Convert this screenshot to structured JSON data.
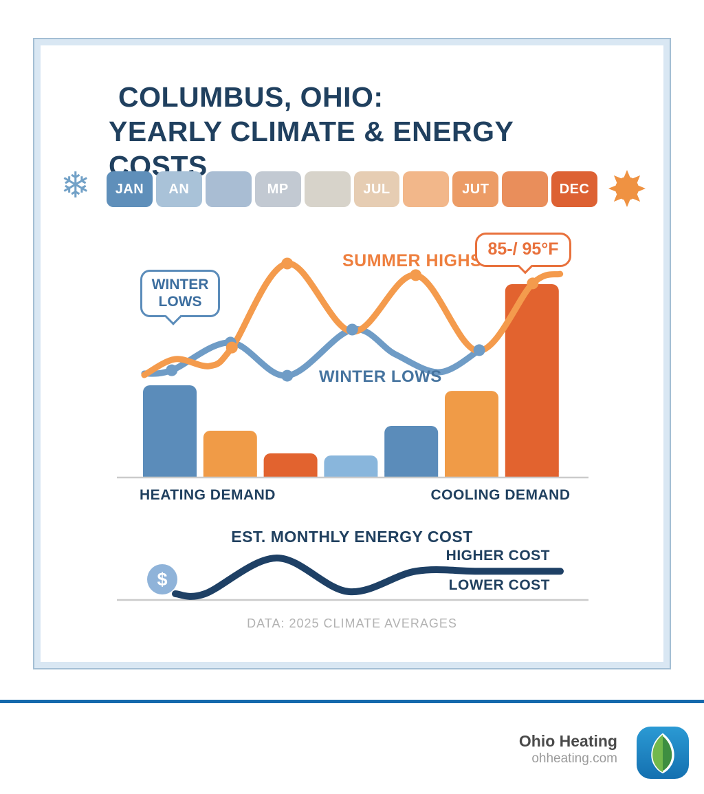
{
  "header": {
    "title_line1": "COLUMBUS, OHIO:",
    "title_line2": "YEARLY CLIMATE & ENERGY COSTS"
  },
  "months_bar": {
    "left_icon": "snowflake-icon",
    "snowflake_glyph": "❄",
    "right_icon": "sun-icon",
    "tiles": [
      {
        "label": "JAN",
        "color": "#5f8fba"
      },
      {
        "label": "AN",
        "color": "#a9c2d8"
      },
      {
        "label": "",
        "color": "#a9bdd3"
      },
      {
        "label": "MP",
        "color": "#c2c9d2"
      },
      {
        "label": "",
        "color": "#d7d3ca"
      },
      {
        "label": "JUL",
        "color": "#e6cdb3"
      },
      {
        "label": "",
        "color": "#f2b78a"
      },
      {
        "label": "JUT",
        "color": "#ec9c66"
      },
      {
        "label": "",
        "color": "#e98e5b"
      },
      {
        "label": "DEC",
        "color": "#dd6133"
      }
    ]
  },
  "annotations": {
    "winter_bubble_line1": "WINTER",
    "winter_bubble_line2": "LOWS",
    "summer_highs_label": "SUMMER HIGHS",
    "winter_lows_label": "WINTER LOWS",
    "temp_callout": "85-/ 95°F"
  },
  "bar_labels": {
    "heating": "HEATING DEMAND",
    "cooling": "COOLING DEMAND"
  },
  "cost_section": {
    "title": "EST. MONTHLY ENERGY COST",
    "higher": "HIGHER COST",
    "lower": "LOWER COST",
    "currency_symbol": "$"
  },
  "source_note": "DATA: 2025 CLIMATE AVERAGES",
  "footer": {
    "brand": "Ohio Heating",
    "website": "ohheating.com"
  },
  "colors": {
    "navy_text": "#20405f",
    "summer_line": "#f49b4d",
    "winter_line": "#6f9cc6",
    "steel_blue_bar": "#5b8cba",
    "light_blue_bar": "#89b6dc",
    "orange_bar": "#f09b47",
    "dark_orange_bar": "#e2632f",
    "cost_line": "#1e4065",
    "baseline_gray": "#cbcbcb",
    "divider_blue": "#1569ac",
    "snowflake_blue": "#72a1c7",
    "sun_orange": "#ef9242",
    "dollar_badge": "#8fb3d9"
  },
  "chart_data": [
    {
      "type": "line",
      "title": "Yearly temperature curves (stylized, unlabeled axes)",
      "x_axis": "Months Jan–Dec (tile strip above chart), x normalized 0–100",
      "y_axis": "Relative temperature, y normalized 0–100 (baseline=0)",
      "labeled_values": [
        "85-/ 95°F at late-year summer-highs point"
      ],
      "series": [
        {
          "name": "SUMMER HIGHS",
          "color": "#f49b4d",
          "points": [
            [
              5.7,
              43.3
            ],
            [
              12.1,
              50
            ],
            [
              19.3,
              47.1
            ],
            [
              23.9,
              54.9
            ],
            [
              35.4,
              90.4
            ],
            [
              48.9,
              61.6
            ],
            [
              62.1,
              85.5
            ],
            [
              75,
              53.5
            ],
            [
              86.4,
              82
            ],
            [
              92.1,
              86
            ]
          ],
          "marker_indices": [
            3,
            4,
            6,
            8
          ]
        },
        {
          "name": "WINTER LOWS",
          "color": "#6f9cc6",
          "points": [
            [
              5.7,
              43.9
            ],
            [
              11.4,
              45.3
            ],
            [
              23.6,
              57
            ],
            [
              35.4,
              43
            ],
            [
              48.9,
              62.5
            ],
            [
              57.9,
              52
            ],
            [
              67.1,
              44.5
            ],
            [
              75.3,
              53.8
            ]
          ],
          "marker_indices": [
            1,
            2,
            3,
            4,
            7
          ]
        }
      ],
      "legend_position": "inline labels and callout bubbles"
    },
    {
      "type": "bar",
      "title": "Heating vs cooling demand (stylized, unlabeled axis)",
      "categories": [
        "",
        "",
        "",
        "",
        "",
        "",
        ""
      ],
      "values": [
        47.7,
        24.2,
        12.5,
        11.4,
        26.7,
        44.8,
        100
      ],
      "colors": [
        "#5b8cba",
        "#f09b47",
        "#e2632f",
        "#89b6dc",
        "#5b8cba",
        "#f09b47",
        "#e2632f"
      ],
      "ylim": [
        0,
        100
      ],
      "group_labels": {
        "left": "HEATING DEMAND",
        "right": "COOLING DEMAND"
      }
    },
    {
      "type": "line",
      "title": "EST. MONTHLY ENERGY COST",
      "x_axis": "Months across year, x normalized 0–100",
      "y_axis": "Relative cost, 0 = LOWER COST, 100 = winter peak; plateau at HIGHER COST ≈ 63",
      "series": [
        {
          "name": "EST. MONTHLY ENERGY COST",
          "color": "#1e4065",
          "points": [
            [
              0,
              0
            ],
            [
              7.7,
              0
            ],
            [
              26.3,
              100
            ],
            [
              45,
              6
            ],
            [
              62.5,
              63
            ],
            [
              79,
              63
            ],
            [
              100,
              63
            ]
          ]
        }
      ],
      "annotations": [
        "HIGHER COST",
        "LOWER COST"
      ]
    }
  ]
}
